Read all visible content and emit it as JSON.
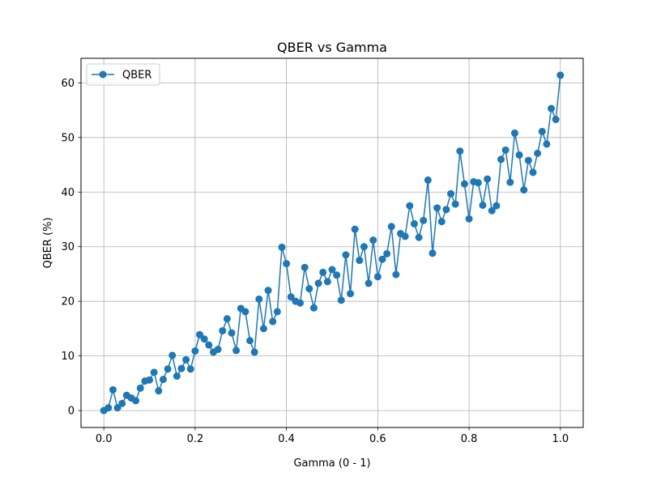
{
  "chart_data": {
    "type": "line",
    "title": "QBER vs Gamma",
    "xlabel": "Gamma (0 - 1)",
    "ylabel": "QBER (%)",
    "xlim": [
      -0.05,
      1.05
    ],
    "ylim": [
      -3.1,
      64.5
    ],
    "xticks": [
      0.0,
      0.2,
      0.4,
      0.6,
      0.8,
      1.0
    ],
    "xtick_labels": [
      "0.0",
      "0.2",
      "0.4",
      "0.6",
      "0.8",
      "1.0"
    ],
    "yticks": [
      0,
      10,
      20,
      30,
      40,
      50,
      60
    ],
    "ytick_labels": [
      "0",
      "10",
      "20",
      "30",
      "40",
      "50",
      "60"
    ],
    "grid": true,
    "legend": "upper-left",
    "series": [
      {
        "name": "QBER",
        "color": "#1f77b4",
        "marker": "circle",
        "x": [
          0.0,
          0.01,
          0.02,
          0.03,
          0.04,
          0.05,
          0.06,
          0.07,
          0.08,
          0.09,
          0.1,
          0.11,
          0.12,
          0.13,
          0.14,
          0.15,
          0.16,
          0.17,
          0.18,
          0.19,
          0.2,
          0.21,
          0.22,
          0.23,
          0.24,
          0.25,
          0.26,
          0.27,
          0.28,
          0.29,
          0.3,
          0.31,
          0.32,
          0.33,
          0.34,
          0.35,
          0.36,
          0.37,
          0.38,
          0.39,
          0.4,
          0.41,
          0.42,
          0.43,
          0.44,
          0.45,
          0.46,
          0.47,
          0.48,
          0.49,
          0.5,
          0.51,
          0.52,
          0.53,
          0.54,
          0.55,
          0.56,
          0.57,
          0.58,
          0.59,
          0.6,
          0.61,
          0.62,
          0.63,
          0.64,
          0.65,
          0.66,
          0.67,
          0.68,
          0.69,
          0.7,
          0.71,
          0.72,
          0.73,
          0.74,
          0.75,
          0.76,
          0.77,
          0.78,
          0.79,
          0.8,
          0.81,
          0.82,
          0.83,
          0.84,
          0.85,
          0.86,
          0.87,
          0.88,
          0.89,
          0.9,
          0.91,
          0.92,
          0.93,
          0.94,
          0.95,
          0.96,
          0.97,
          0.98,
          0.99,
          1.0
        ],
        "y": [
          0.0,
          0.5,
          3.8,
          0.5,
          1.3,
          2.8,
          2.3,
          1.8,
          4.1,
          5.4,
          5.6,
          7.0,
          3.6,
          5.7,
          7.6,
          10.1,
          6.3,
          7.7,
          9.3,
          7.6,
          10.9,
          13.9,
          13.1,
          12.0,
          10.7,
          11.2,
          14.6,
          16.8,
          14.2,
          11.0,
          18.7,
          18.1,
          12.8,
          10.7,
          20.4,
          15.0,
          22.0,
          16.3,
          18.1,
          29.9,
          26.9,
          20.8,
          20.0,
          19.7,
          26.2,
          22.3,
          18.8,
          23.3,
          25.3,
          23.6,
          25.8,
          24.8,
          20.2,
          28.5,
          21.4,
          33.2,
          27.5,
          30.0,
          23.3,
          31.2,
          24.5,
          27.7,
          28.7,
          33.7,
          24.9,
          32.4,
          31.9,
          37.5,
          34.2,
          31.7,
          34.8,
          42.2,
          28.8,
          37.1,
          34.6,
          36.8,
          39.7,
          37.8,
          47.5,
          41.5,
          35.1,
          41.9,
          41.7,
          37.6,
          42.4,
          36.6,
          37.5,
          46.0,
          47.7,
          41.8,
          50.8,
          46.8,
          40.4,
          45.8,
          43.6,
          47.1,
          51.1,
          48.8,
          55.3,
          53.3,
          61.4
        ]
      }
    ]
  }
}
